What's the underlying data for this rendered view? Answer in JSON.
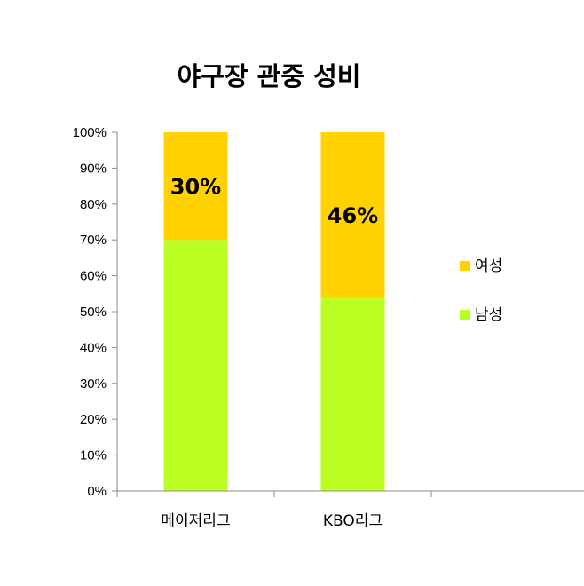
{
  "chart_data": {
    "type": "bar",
    "stacked": true,
    "title": "야구장 관중 성비",
    "categories": [
      "메이저리그",
      "KBO리그"
    ],
    "series": [
      {
        "name": "남성",
        "values": [
          70,
          54
        ],
        "color": "#bbff22"
      },
      {
        "name": "여성",
        "values": [
          30,
          46
        ],
        "color": "#ffd200"
      }
    ],
    "data_labels": [
      {
        "category": "메이저리그",
        "series": "여성",
        "text": "30%"
      },
      {
        "category": "KBO리그",
        "series": "여성",
        "text": "46%"
      }
    ],
    "yticks": [
      "0%",
      "10%",
      "20%",
      "30%",
      "40%",
      "50%",
      "60%",
      "70%",
      "80%",
      "90%",
      "100%"
    ],
    "ylim": [
      0,
      100
    ],
    "grid": false,
    "legend_position": "right",
    "legend_order": [
      "여성",
      "남성"
    ]
  }
}
